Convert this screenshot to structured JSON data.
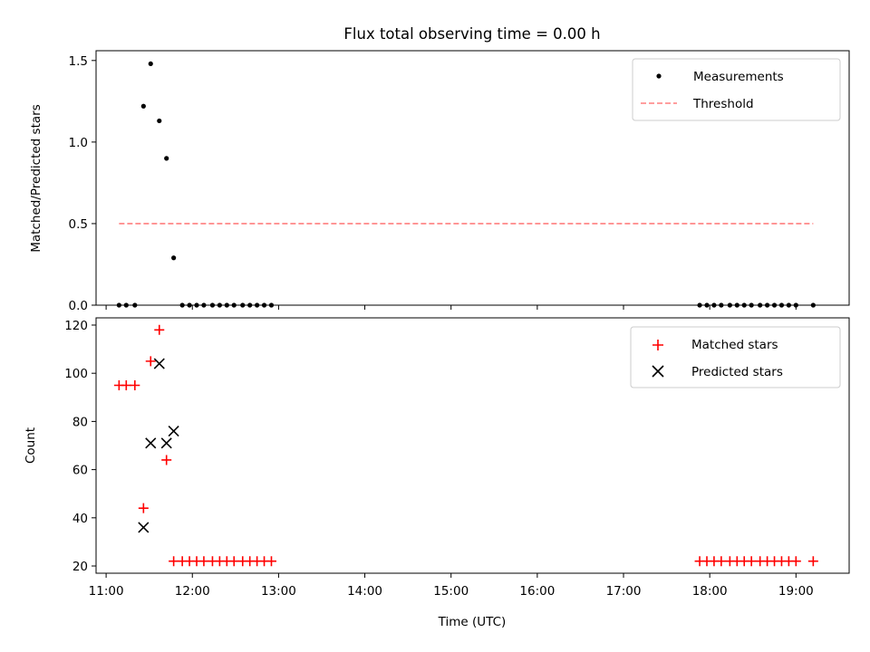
{
  "chart_data": [
    {
      "type": "scatter",
      "title": "Flux total observing time = 0.00 h",
      "xlabel": "",
      "ylabel": "Matched/Predicted stars",
      "xlim": [
        "10:53",
        "19:37"
      ],
      "ylim": [
        0,
        1.56
      ],
      "yticks": [
        "0.0",
        "0.5",
        "1.0",
        "1.5"
      ],
      "legend_position": "top-right",
      "series": [
        {
          "name": "Measurements",
          "marker": "dot",
          "color": "#000000",
          "points": [
            [
              "11:09",
              0
            ],
            [
              "11:14",
              0
            ],
            [
              "11:20",
              0
            ],
            [
              "11:26",
              1.22
            ],
            [
              "11:31",
              1.48
            ],
            [
              "11:37",
              1.13
            ],
            [
              "11:42",
              0.9
            ],
            [
              "11:47",
              0.29
            ],
            [
              "11:53",
              0
            ],
            [
              "11:58",
              0
            ],
            [
              "12:03",
              0
            ],
            [
              "12:08",
              0
            ],
            [
              "12:14",
              0
            ],
            [
              "12:19",
              0
            ],
            [
              "12:24",
              0
            ],
            [
              "12:29",
              0
            ],
            [
              "12:35",
              0
            ],
            [
              "12:40",
              0
            ],
            [
              "12:45",
              0
            ],
            [
              "12:50",
              0
            ],
            [
              "12:55",
              0
            ],
            [
              "17:53",
              0
            ],
            [
              "17:58",
              0
            ],
            [
              "18:03",
              0
            ],
            [
              "18:08",
              0
            ],
            [
              "18:14",
              0
            ],
            [
              "18:19",
              0
            ],
            [
              "18:24",
              0
            ],
            [
              "18:29",
              0
            ],
            [
              "18:35",
              0
            ],
            [
              "18:40",
              0
            ],
            [
              "18:45",
              0
            ],
            [
              "18:50",
              0
            ],
            [
              "18:55",
              0
            ],
            [
              "19:00",
              0
            ],
            [
              "19:12",
              0
            ]
          ]
        },
        {
          "name": "Threshold",
          "marker": "dashed-line",
          "color": "#ff7f7f",
          "points": [
            [
              "11:09",
              0.5
            ],
            [
              "19:12",
              0.5
            ]
          ]
        }
      ]
    },
    {
      "type": "scatter",
      "title": "",
      "xlabel": "Time (UTC)",
      "ylabel": "Count",
      "xlim": [
        "10:53",
        "19:37"
      ],
      "ylim": [
        17,
        123
      ],
      "yticks": [
        "20",
        "40",
        "60",
        "80",
        "100",
        "120"
      ],
      "xticks": [
        "11:00",
        "12:00",
        "13:00",
        "14:00",
        "15:00",
        "16:00",
        "17:00",
        "18:00",
        "19:00"
      ],
      "legend_position": "top-right",
      "series": [
        {
          "name": "Matched stars",
          "marker": "plus",
          "color": "#ff0000",
          "points": [
            [
              "11:09",
              95
            ],
            [
              "11:14",
              95
            ],
            [
              "11:20",
              95
            ],
            [
              "11:26",
              44
            ],
            [
              "11:31",
              105
            ],
            [
              "11:37",
              118
            ],
            [
              "11:42",
              64
            ],
            [
              "11:47",
              22
            ],
            [
              "11:53",
              22
            ],
            [
              "11:58",
              22
            ],
            [
              "12:03",
              22
            ],
            [
              "12:08",
              22
            ],
            [
              "12:14",
              22
            ],
            [
              "12:19",
              22
            ],
            [
              "12:24",
              22
            ],
            [
              "12:29",
              22
            ],
            [
              "12:35",
              22
            ],
            [
              "12:40",
              22
            ],
            [
              "12:45",
              22
            ],
            [
              "12:50",
              22
            ],
            [
              "12:55",
              22
            ],
            [
              "17:53",
              22
            ],
            [
              "17:58",
              22
            ],
            [
              "18:03",
              22
            ],
            [
              "18:08",
              22
            ],
            [
              "18:14",
              22
            ],
            [
              "18:19",
              22
            ],
            [
              "18:24",
              22
            ],
            [
              "18:29",
              22
            ],
            [
              "18:35",
              22
            ],
            [
              "18:40",
              22
            ],
            [
              "18:45",
              22
            ],
            [
              "18:50",
              22
            ],
            [
              "18:55",
              22
            ],
            [
              "19:00",
              22
            ],
            [
              "19:12",
              22
            ]
          ]
        },
        {
          "name": "Predicted stars",
          "marker": "x",
          "color": "#000000",
          "points": [
            [
              "11:26",
              36
            ],
            [
              "11:31",
              71
            ],
            [
              "11:37",
              104
            ],
            [
              "11:42",
              71
            ],
            [
              "11:47",
              76
            ]
          ]
        }
      ]
    }
  ]
}
